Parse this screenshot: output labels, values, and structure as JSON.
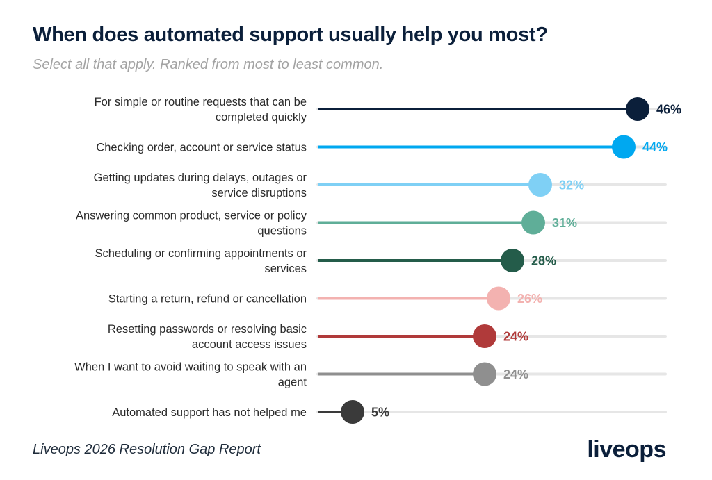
{
  "header": {
    "title": "When does automated support usually help you most?",
    "subtitle": "Select all that apply. Ranked from most to least common."
  },
  "footer": {
    "source": "Liveops 2026 Resolution Gap Report",
    "logo_text": "liveops"
  },
  "chart_data": {
    "type": "bar",
    "style": "lollipop",
    "orientation": "horizontal",
    "xlim": [
      0,
      50
    ],
    "grid": false,
    "value_suffix": "%",
    "categories": [
      [
        "For simple or routine requests that can be",
        "completed quickly"
      ],
      [
        "Checking order, account or service status"
      ],
      [
        "Getting updates during delays, outages or",
        "service disruptions"
      ],
      [
        "Answering common product, service or policy",
        "questions"
      ],
      [
        "Scheduling or confirming appointments or",
        "services"
      ],
      [
        "Starting a return, refund or cancellation"
      ],
      [
        "Resetting passwords or resolving basic",
        "account access issues"
      ],
      [
        "When I want to avoid waiting to speak with an",
        "agent"
      ],
      [
        "Automated support has not helped me"
      ]
    ],
    "values": [
      46,
      44,
      32,
      31,
      28,
      26,
      24,
      24,
      5
    ],
    "colors": [
      "#0b1f3a",
      "#00a8f0",
      "#7fd0f5",
      "#5fae98",
      "#245c4a",
      "#f3b2b0",
      "#b03a3a",
      "#8f8f8f",
      "#3a3a3a"
    ],
    "track_color": "#e6e6e6"
  }
}
